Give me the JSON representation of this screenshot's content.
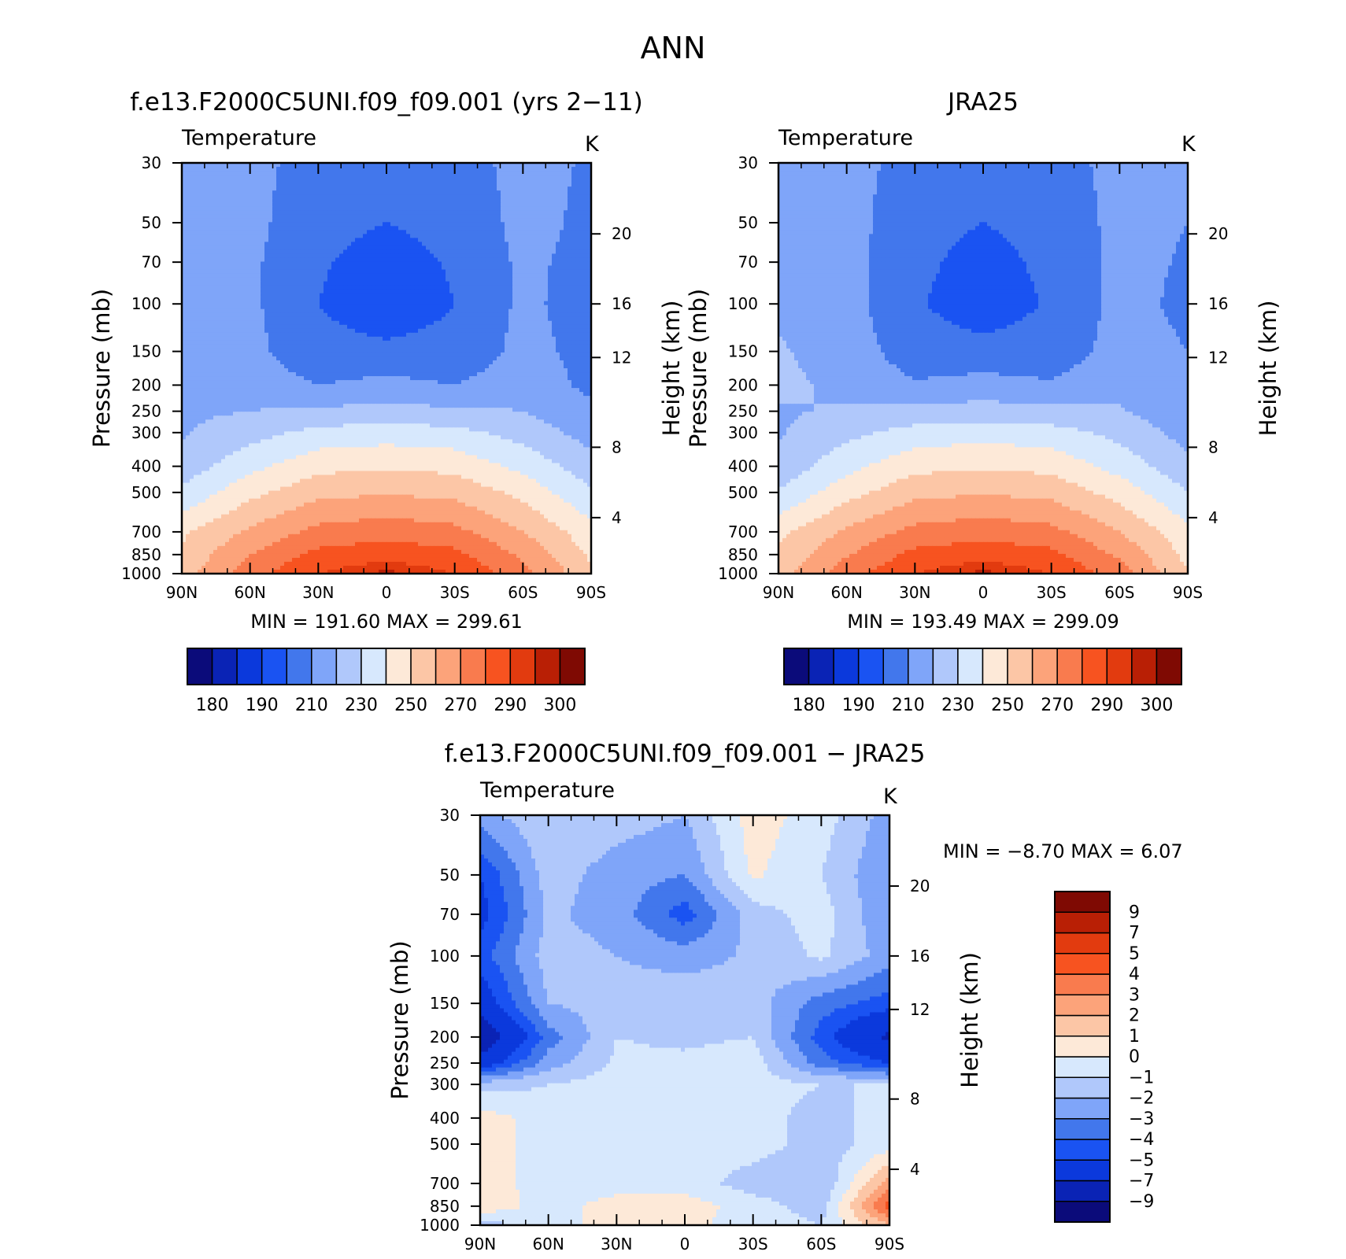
{
  "figure": {
    "title": "ANN"
  },
  "chart_data": [
    {
      "type": "heatmap",
      "title": "f.e13.F2000C5UNI.f09_f09.001 (yrs 2−11)",
      "subtitle_left": "Temperature",
      "subtitle_right": "K",
      "xlabel": "",
      "ylabel": "Pressure (mb)",
      "ylabel_right": "Height (km)",
      "x_ticks": [
        "90N",
        "60N",
        "30N",
        "0",
        "30S",
        "60S",
        "90S"
      ],
      "y_ticks": [
        "30",
        "50",
        "70",
        "100",
        "150",
        "200",
        "250",
        "300",
        "400",
        "500",
        "700",
        "850",
        "1000"
      ],
      "y_ticks_right": [
        "20",
        "16",
        "12",
        "8",
        "4"
      ],
      "y_scale": "log pressure",
      "ylim": [
        1000,
        30
      ],
      "stats_text": "MIN = 191.60  MAX = 299.61",
      "min": 191.6,
      "max": 299.61,
      "fields": {
        "lat": [
          90,
          60,
          30,
          0,
          -30,
          -60,
          -90
        ],
        "p": [
          30,
          50,
          70,
          100,
          150,
          200,
          250,
          300,
          400,
          500,
          700,
          850,
          1000
        ],
        "values": [
          [
            215,
            213,
            206,
            204,
            206,
            213,
            209
          ],
          [
            215,
            213,
            203,
            200,
            203,
            213,
            208
          ],
          [
            215,
            212,
            201,
            196,
            201,
            212,
            207
          ],
          [
            216,
            212,
            200,
            194,
            200,
            212,
            206
          ],
          [
            217,
            213,
            203,
            202,
            203,
            213,
            207
          ],
          [
            218,
            215,
            210,
            213,
            210,
            215,
            208
          ],
          [
            218,
            220,
            222,
            223,
            222,
            220,
            212
          ],
          [
            219,
            226,
            233,
            235,
            233,
            226,
            216
          ],
          [
            224,
            237,
            247,
            249,
            247,
            237,
            224
          ],
          [
            232,
            247,
            257,
            259,
            257,
            247,
            231
          ],
          [
            248,
            262,
            273,
            276,
            273,
            260,
            244
          ],
          [
            252,
            270,
            283,
            286,
            283,
            268,
            248
          ],
          [
            255,
            276,
            290,
            297,
            290,
            274,
            252
          ]
        ]
      },
      "colorbar": {
        "orientation": "horizontal",
        "levels": [
          180,
          185,
          190,
          200,
          210,
          220,
          230,
          240,
          250,
          260,
          270,
          280,
          290,
          295,
          300
        ],
        "labels": [
          "180",
          "190",
          "210",
          "230",
          "250",
          "270",
          "290",
          "300"
        ],
        "colors": [
          "#0b0b7a",
          "#0a23b5",
          "#0b39dc",
          "#1a53f2",
          "#4277ec",
          "#7fa5f9",
          "#b0c8fb",
          "#d7e8fd",
          "#fde9d8",
          "#fcc6a6",
          "#fca37a",
          "#f97b4e",
          "#f75320",
          "#e23b0f",
          "#b91f05",
          "#7f0a03"
        ]
      }
    },
    {
      "type": "heatmap",
      "title": "JRA25",
      "subtitle_left": "Temperature",
      "subtitle_right": "K",
      "xlabel": "",
      "ylabel": "Pressure (mb)",
      "ylabel_right": "Height (km)",
      "x_ticks": [
        "90N",
        "60N",
        "30N",
        "0",
        "30S",
        "60S",
        "90S"
      ],
      "y_ticks": [
        "30",
        "50",
        "70",
        "100",
        "150",
        "200",
        "250",
        "300",
        "400",
        "500",
        "700",
        "850",
        "1000"
      ],
      "y_ticks_right": [
        "20",
        "16",
        "12",
        "8",
        "4"
      ],
      "y_scale": "log pressure",
      "ylim": [
        1000,
        30
      ],
      "stats_text": "MIN = 193.49  MAX = 299.09",
      "min": 193.49,
      "max": 299.09,
      "fields": {
        "lat": [
          90,
          60,
          30,
          0,
          -30,
          -60,
          -90
        ],
        "p": [
          30,
          50,
          70,
          100,
          150,
          200,
          250,
          300,
          400,
          500,
          700,
          850,
          1000
        ],
        "values": [
          [
            216,
            214,
            206,
            204,
            206,
            213,
            210
          ],
          [
            216,
            214,
            203,
            200,
            203,
            213,
            210
          ],
          [
            217,
            214,
            202,
            197,
            202,
            213,
            209
          ],
          [
            218,
            214,
            201,
            195,
            201,
            213,
            208
          ],
          [
            221,
            216,
            204,
            203,
            204,
            214,
            210
          ],
          [
            222,
            218,
            211,
            214,
            211,
            217,
            212
          ],
          [
            219,
            221,
            223,
            224,
            223,
            221,
            213
          ],
          [
            219,
            227,
            234,
            236,
            234,
            227,
            216
          ],
          [
            223,
            237,
            247,
            249,
            247,
            236,
            223
          ],
          [
            231,
            246,
            257,
            259,
            257,
            246,
            230
          ],
          [
            247,
            262,
            273,
            276,
            273,
            260,
            243
          ],
          [
            252,
            269,
            283,
            286,
            283,
            268,
            247
          ],
          [
            256,
            276,
            290,
            297,
            290,
            275,
            251
          ]
        ]
      },
      "colorbar": {
        "orientation": "horizontal",
        "levels": [
          180,
          185,
          190,
          200,
          210,
          220,
          230,
          240,
          250,
          260,
          270,
          280,
          290,
          295,
          300
        ],
        "labels": [
          "180",
          "190",
          "210",
          "230",
          "250",
          "270",
          "290",
          "300"
        ],
        "colors": [
          "#0b0b7a",
          "#0a23b5",
          "#0b39dc",
          "#1a53f2",
          "#4277ec",
          "#7fa5f9",
          "#b0c8fb",
          "#d7e8fd",
          "#fde9d8",
          "#fcc6a6",
          "#fca37a",
          "#f97b4e",
          "#f75320",
          "#e23b0f",
          "#b91f05",
          "#7f0a03"
        ]
      }
    },
    {
      "type": "heatmap",
      "title": "f.e13.F2000C5UNI.f09_f09.001 − JRA25",
      "subtitle_left": "Temperature",
      "subtitle_right": "K",
      "xlabel": "",
      "ylabel": "Pressure (mb)",
      "ylabel_right": "Height (km)",
      "x_ticks": [
        "90N",
        "60N",
        "30N",
        "0",
        "30S",
        "60S",
        "90S"
      ],
      "y_ticks": [
        "30",
        "50",
        "70",
        "100",
        "150",
        "200",
        "250",
        "300",
        "400",
        "500",
        "700",
        "850",
        "1000"
      ],
      "y_ticks_right": [
        "20",
        "16",
        "12",
        "8",
        "4"
      ],
      "y_scale": "log pressure",
      "ylim": [
        1000,
        30
      ],
      "stats_text": "MIN =   −8.70   MAX =     6.07",
      "min": -8.7,
      "max": 6.07,
      "fields": {
        "lat": [
          90,
          60,
          30,
          0,
          -30,
          -60,
          -90
        ],
        "p": [
          30,
          50,
          70,
          100,
          150,
          200,
          250,
          300,
          400,
          500,
          700,
          850,
          1000
        ],
        "values": [
          [
            -2.5,
            -1.0,
            -1.5,
            -2.0,
            0.5,
            -0.5,
            -2.5
          ],
          [
            -5.0,
            -1.5,
            -2.5,
            -3.0,
            0.2,
            -1.0,
            -3.0
          ],
          [
            -5.5,
            -1.8,
            -2.5,
            -4.5,
            -1.5,
            -0.5,
            -3.0
          ],
          [
            -4.5,
            -1.5,
            -2.0,
            -2.5,
            -1.8,
            -0.8,
            -2.5
          ],
          [
            -6.0,
            -2.0,
            -1.5,
            -1.2,
            -1.5,
            -3.5,
            -4.5
          ],
          [
            -8.7,
            -3.5,
            -1.0,
            -1.2,
            -1.0,
            -4.5,
            -7.5
          ],
          [
            -6.0,
            -2.5,
            -0.8,
            -0.8,
            -0.5,
            -3.5,
            -5.0
          ],
          [
            -1.5,
            -1.0,
            -0.5,
            -0.5,
            -0.5,
            -1.0,
            -1.0
          ],
          [
            0.5,
            -0.5,
            -0.5,
            -0.5,
            -0.5,
            -1.5,
            -0.5
          ],
          [
            0.5,
            -0.5,
            -0.5,
            -0.5,
            -0.5,
            -1.5,
            -0.5
          ],
          [
            0.5,
            -0.5,
            -0.5,
            -0.5,
            -1.5,
            -2.0,
            2.5
          ],
          [
            0.8,
            -0.5,
            0.5,
            0.5,
            -0.5,
            -1.5,
            4.5
          ],
          [
            -1.5,
            -0.5,
            0.5,
            0.3,
            -0.5,
            -1.0,
            2.0
          ]
        ]
      },
      "colorbar": {
        "orientation": "vertical",
        "levels": [
          -9,
          -7,
          -5,
          -4,
          -3,
          -2,
          -1,
          0,
          1,
          2,
          3,
          4,
          5,
          7,
          9
        ],
        "labels": [
          "9",
          "7",
          "5",
          "4",
          "3",
          "2",
          "1",
          "0",
          "−1",
          "−2",
          "−3",
          "−4",
          "−5",
          "−7",
          "−9"
        ],
        "colors": [
          "#0b0b7a",
          "#0a23b5",
          "#0b39dc",
          "#1a53f2",
          "#4277ec",
          "#7fa5f9",
          "#b0c8fb",
          "#d7e8fd",
          "#fde9d8",
          "#fcc6a6",
          "#fca37a",
          "#f97b4e",
          "#f75320",
          "#e23b0f",
          "#b91f05",
          "#7f0a03"
        ]
      }
    }
  ]
}
